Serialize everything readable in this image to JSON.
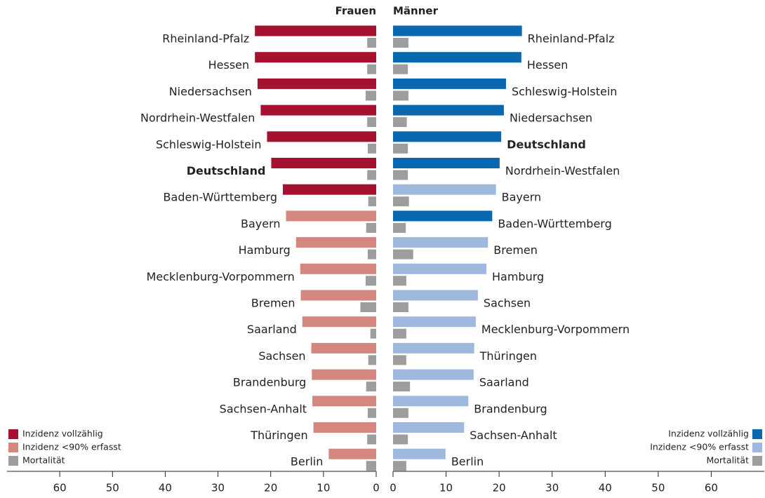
{
  "chart_data": [
    {
      "type": "bar",
      "orientation": "horizontal",
      "title": "Frauen",
      "xreverse": true,
      "highlight": "Deutschland",
      "legend": "bottom-left",
      "categories": [
        "Rheinland-Pfalz",
        "Hessen",
        "Niedersachsen",
        "Nordrhein-Westfalen",
        "Schleswig-Holstein",
        "Deutschland",
        "Baden-Württemberg",
        "Bayern",
        "Hamburg",
        "Mecklenburg-Vorpommern",
        "Bremen",
        "Saarland",
        "Sachsen",
        "Brandenburg",
        "Sachsen-Anhalt",
        "Thüringen",
        "Berlin"
      ],
      "series": [
        {
          "name": "Inzidenz vollzählig",
          "color": "#a6112f",
          "values": [
            23.0,
            23.0,
            22.5,
            21.9,
            20.7,
            19.9,
            17.7,
            null,
            null,
            null,
            null,
            null,
            null,
            null,
            null,
            null,
            null
          ]
        },
        {
          "name": "Inzidenz <90% erfasst",
          "color": "#d4877f",
          "values": [
            null,
            null,
            null,
            null,
            null,
            null,
            null,
            17.1,
            15.2,
            14.4,
            14.3,
            14.0,
            12.3,
            12.2,
            12.1,
            11.9,
            9.0
          ]
        },
        {
          "name": "Mortalität",
          "color": "#9d9d9d",
          "values": [
            1.7,
            1.7,
            2.0,
            1.7,
            1.6,
            1.7,
            1.5,
            1.9,
            1.6,
            2.0,
            3.0,
            1.1,
            1.5,
            1.9,
            1.6,
            1.7,
            1.9
          ]
        }
      ],
      "xlim": [
        0,
        70
      ],
      "xticks": [
        0,
        10,
        20,
        30,
        40,
        50,
        60
      ]
    },
    {
      "type": "bar",
      "orientation": "horizontal",
      "title": "Männer",
      "xreverse": false,
      "highlight": "Deutschland",
      "legend": "bottom-right",
      "categories": [
        "Rheinland-Pfalz",
        "Hessen",
        "Schleswig-Holstein",
        "Niedersachsen",
        "Deutschland",
        "Nordrhein-Westfalen",
        "Bayern",
        "Baden-Württemberg",
        "Bremen",
        "Hamburg",
        "Sachsen",
        "Mecklenburg-Vorpommern",
        "Thüringen",
        "Saarland",
        "Brandenburg",
        "Sachsen-Anhalt",
        "Berlin"
      ],
      "series": [
        {
          "name": "Inzidenz vollzählig",
          "color": "#0a68b0",
          "values": [
            24.3,
            24.2,
            21.3,
            20.9,
            20.4,
            20.1,
            null,
            18.7,
            null,
            null,
            null,
            null,
            null,
            null,
            null,
            null,
            null
          ]
        },
        {
          "name": "Inzidenz <90% erfasst",
          "color": "#9fb9de",
          "values": [
            null,
            null,
            null,
            null,
            null,
            null,
            19.4,
            null,
            17.9,
            17.6,
            16.0,
            15.6,
            15.3,
            15.2,
            14.2,
            13.4,
            9.9
          ]
        },
        {
          "name": "Mortalität",
          "color": "#9d9d9d",
          "values": [
            2.9,
            2.8,
            2.9,
            2.6,
            2.8,
            2.8,
            3.0,
            2.4,
            3.8,
            2.5,
            2.9,
            2.5,
            2.5,
            3.2,
            2.9,
            2.8,
            2.5
          ]
        }
      ],
      "xlim": [
        0,
        70
      ],
      "xticks": [
        0,
        10,
        20,
        30,
        40,
        50,
        60
      ]
    }
  ]
}
